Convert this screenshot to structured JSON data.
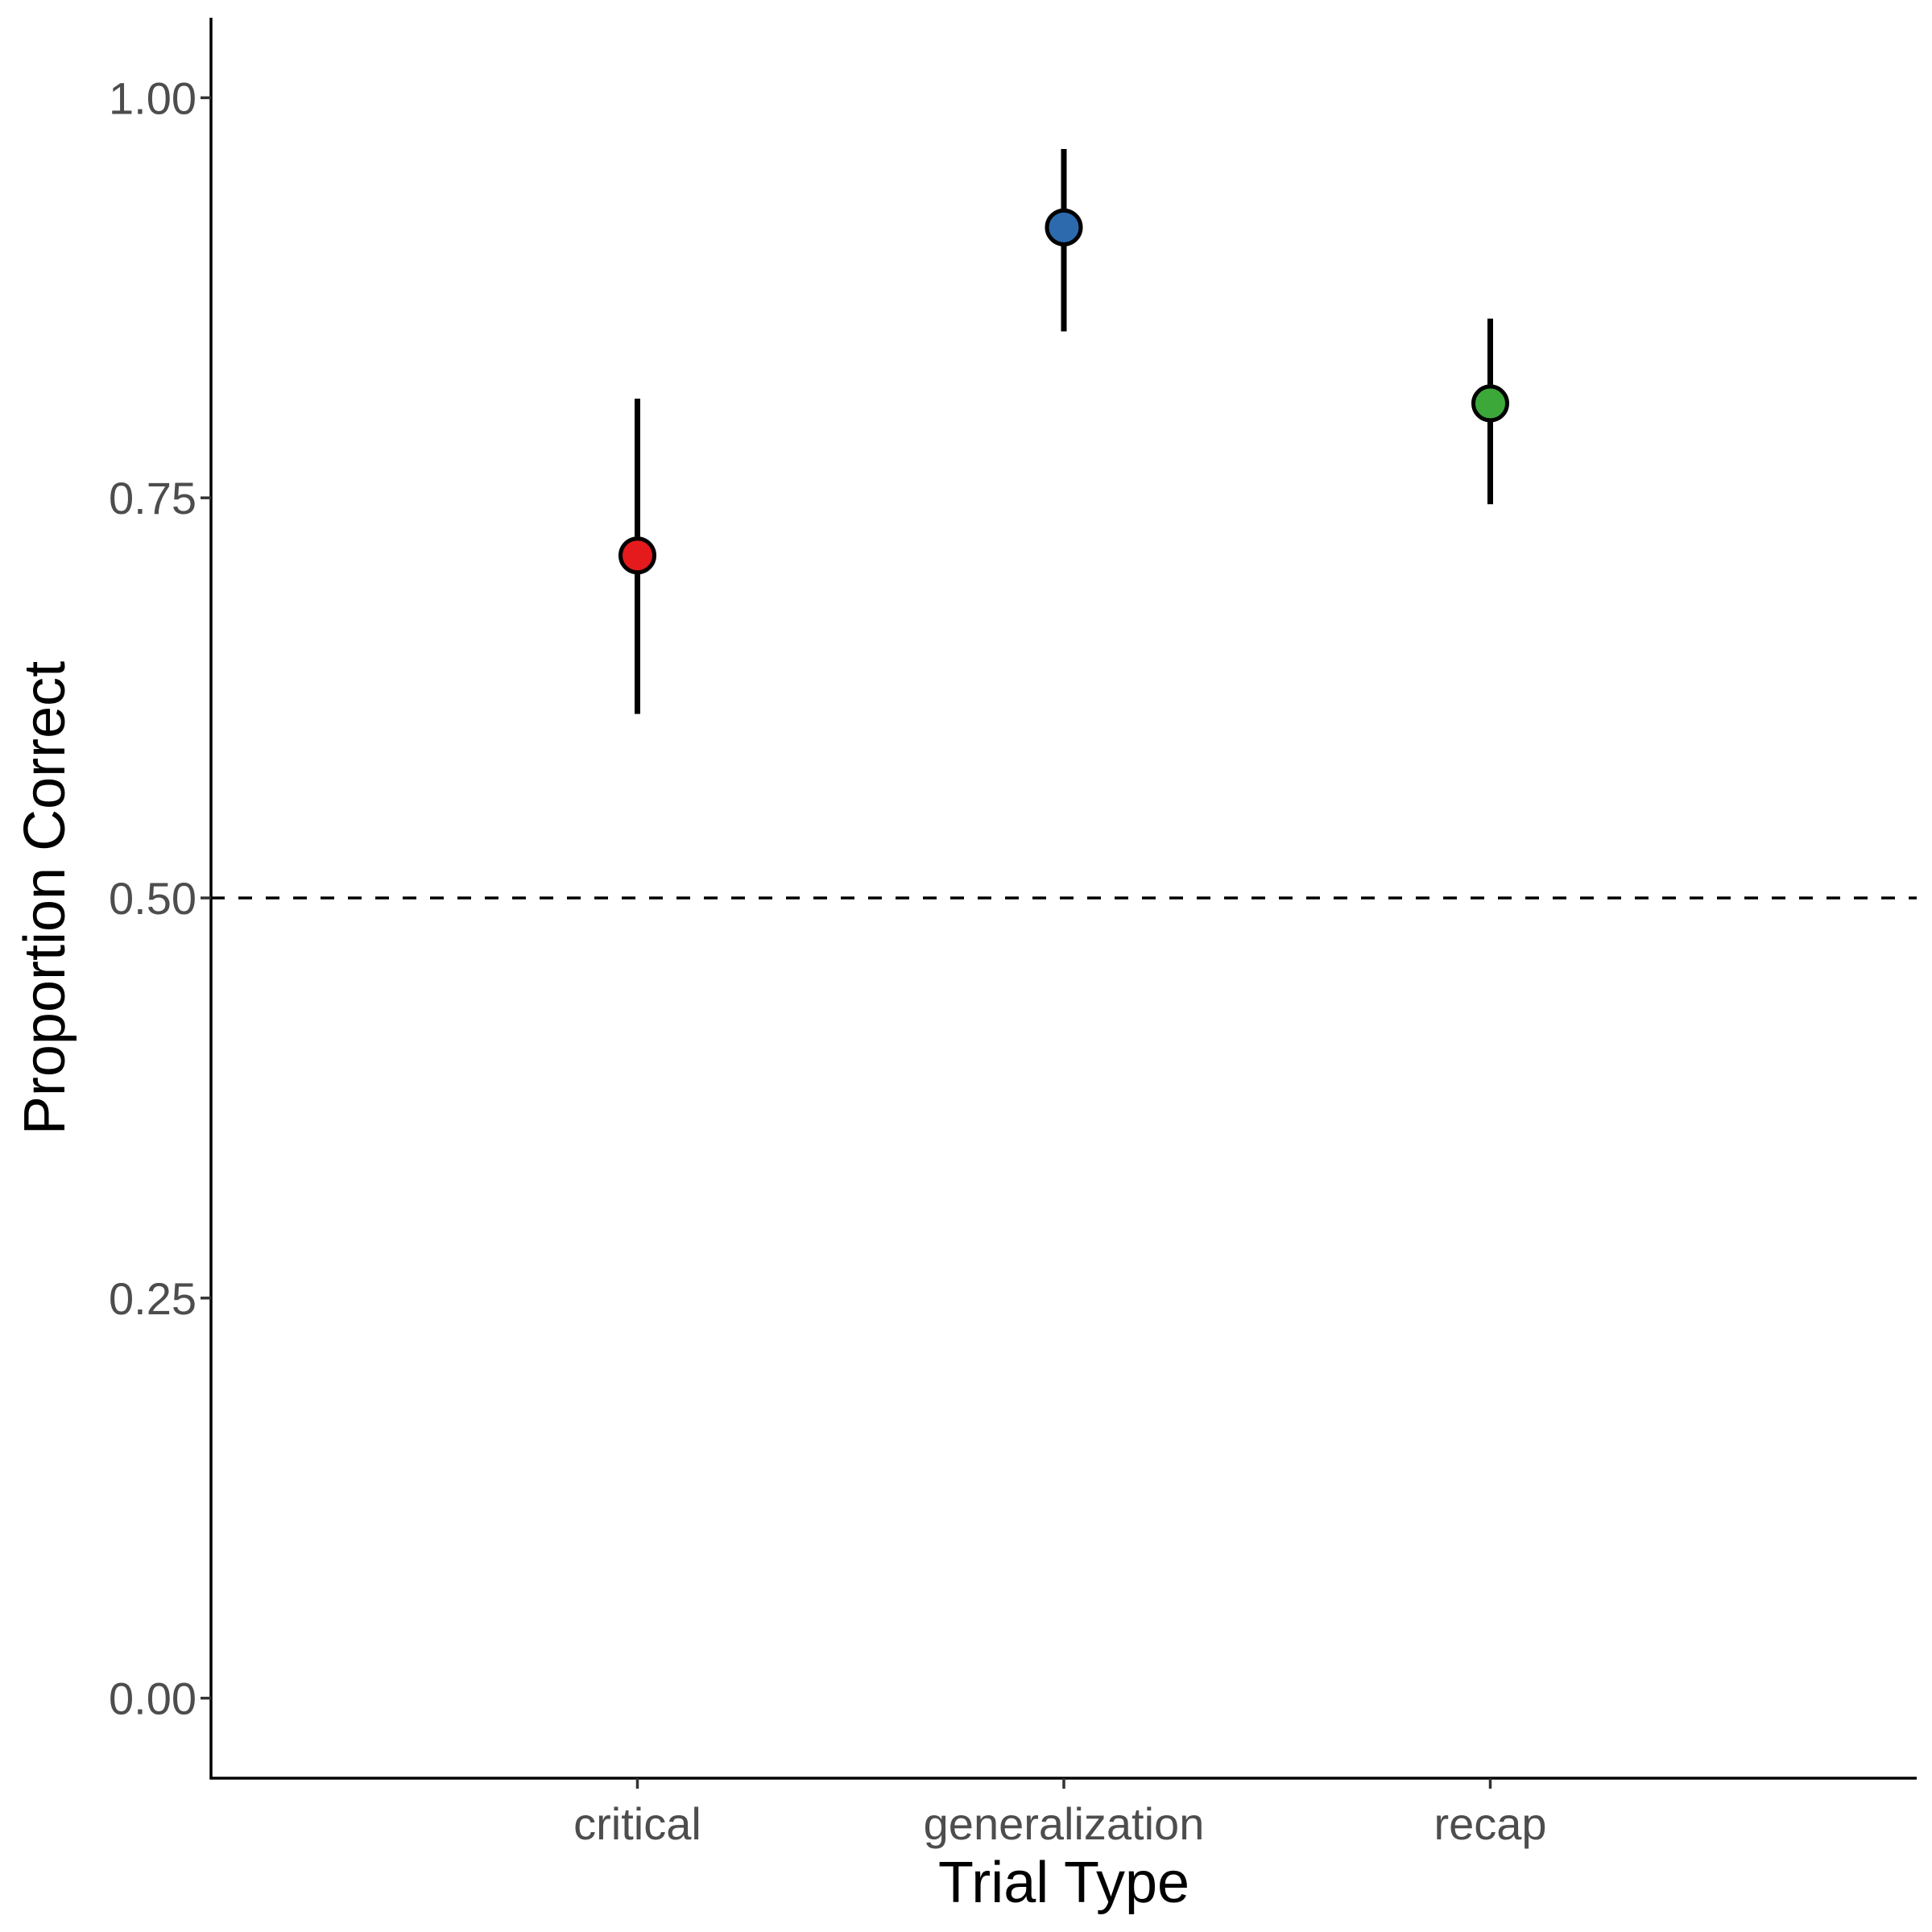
{
  "chart_data": {
    "type": "scatter",
    "title": "",
    "xlabel": "Trial Type",
    "ylabel": "Proportion Correct",
    "categories": [
      "critical",
      "generalization",
      "recap"
    ],
    "values": [
      0.714,
      0.919,
      0.809
    ],
    "error_low": [
      0.615,
      0.854,
      0.746
    ],
    "error_high": [
      0.812,
      0.968,
      0.862
    ],
    "point_colors": [
      "#e41a1c",
      "#2c6aad",
      "#3ca83a"
    ],
    "ylim": [
      -0.05,
      1.05
    ],
    "y_ticks": [
      0.0,
      0.25,
      0.5,
      0.75,
      1.0
    ],
    "y_tick_labels": [
      "0.00",
      "0.25",
      "0.50",
      "0.75",
      "1.00"
    ],
    "reference_line": {
      "y": 0.5,
      "style": "dashed"
    },
    "grid": false,
    "legend": "none"
  }
}
